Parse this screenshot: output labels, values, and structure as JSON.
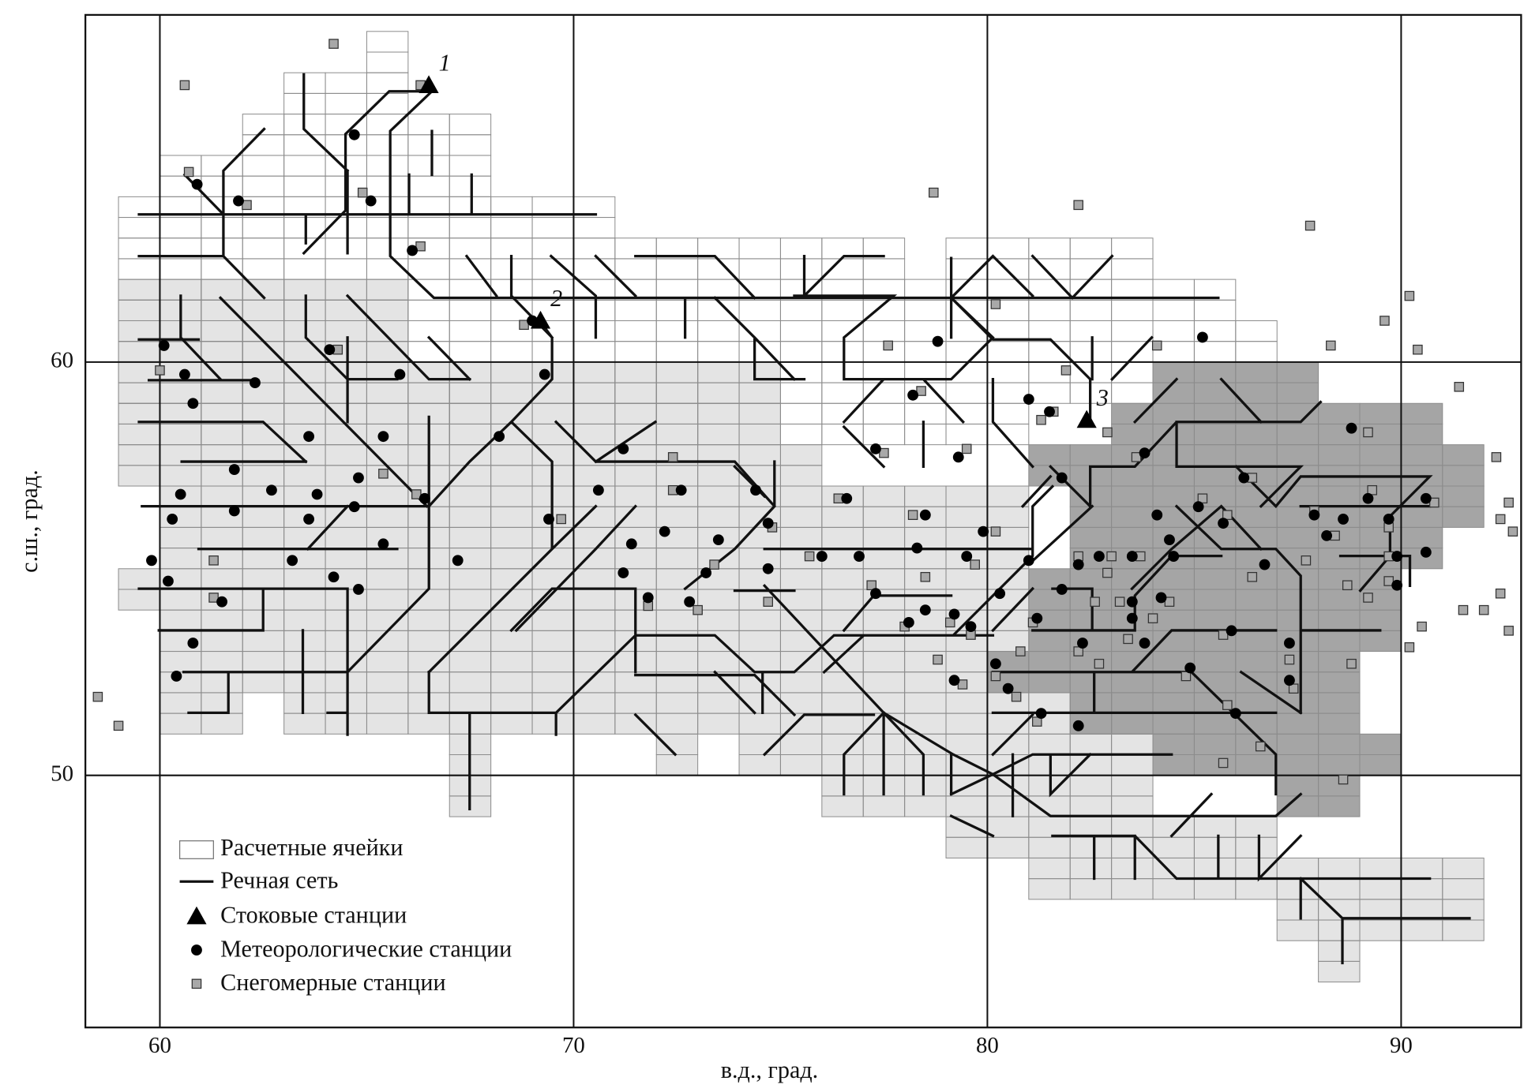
{
  "chart_data": {
    "type": "map",
    "xlabel": "в.д., град.",
    "ylabel": "с.ш., град.",
    "xlim": [
      58.2,
      92.9
    ],
    "ylim": [
      43.9,
      68.4
    ],
    "xticks": [
      60,
      70,
      80,
      90
    ],
    "yticks": [
      50,
      60
    ],
    "grid": true,
    "cell_size": [
      1,
      0.5
    ],
    "shades": {
      "white": "#ffffff",
      "light": "#e4e4e4",
      "dark": "#a5a5a5"
    },
    "legend": {
      "cells": "Расчетные ячейки",
      "rivers": "Речная сеть"
    },
    "cells": [
      {
        "lon": [
          65,
          66
        ],
        "lat": [
          67,
          68
        ],
        "shade": "white"
      },
      {
        "lon": [
          63,
          66
        ],
        "lat": [
          66,
          67
        ],
        "shade": "white"
      },
      {
        "lon": [
          62,
          68
        ],
        "lat": [
          65,
          66
        ],
        "shade": "white"
      },
      {
        "lon": [
          60,
          68
        ],
        "lat": [
          64,
          65
        ],
        "shade": "white"
      },
      {
        "lon": [
          59,
          71
        ],
        "lat": [
          63,
          64
        ],
        "shade": "white"
      },
      {
        "lon": [
          59,
          78
        ],
        "lat": [
          62,
          63
        ],
        "shade": "white"
      },
      {
        "lon": [
          79,
          84
        ],
        "lat": [
          62,
          63
        ],
        "shade": "white"
      },
      {
        "lon": [
          59,
          86
        ],
        "lat": [
          61,
          62
        ],
        "shade": "white"
      },
      {
        "lon": [
          59,
          87
        ],
        "lat": [
          60,
          61
        ],
        "shade": "white"
      },
      {
        "lon": [
          59,
          84
        ],
        "lat": [
          59,
          60
        ],
        "shade": "white"
      },
      {
        "lon": [
          59,
          81
        ],
        "lat": [
          58,
          59
        ],
        "shade": "white"
      },
      {
        "lon": [
          59,
          66
        ],
        "lat": [
          61,
          62
        ],
        "shade": "light"
      },
      {
        "lon": [
          59,
          66
        ],
        "lat": [
          60,
          61
        ],
        "shade": "light"
      },
      {
        "lon": [
          59,
          75
        ],
        "lat": [
          59,
          60
        ],
        "shade": "light"
      },
      {
        "lon": [
          59,
          75
        ],
        "lat": [
          58,
          59
        ],
        "shade": "light"
      },
      {
        "lon": [
          59,
          76
        ],
        "lat": [
          57,
          58
        ],
        "shade": "light"
      },
      {
        "lon": [
          60,
          81
        ],
        "lat": [
          56,
          57
        ],
        "shade": "light"
      },
      {
        "lon": [
          60,
          81
        ],
        "lat": [
          55,
          56
        ],
        "shade": "light"
      },
      {
        "lon": [
          59,
          81
        ],
        "lat": [
          54,
          55
        ],
        "shade": "light"
      },
      {
        "lon": [
          60,
          81
        ],
        "lat": [
          53,
          54
        ],
        "shade": "light"
      },
      {
        "lon": [
          60,
          81
        ],
        "lat": [
          52,
          53
        ],
        "shade": "light"
      },
      {
        "lon": [
          60,
          62
        ],
        "lat": [
          51,
          52
        ],
        "shade": "light"
      },
      {
        "lon": [
          63,
          85
        ],
        "lat": [
          51,
          52
        ],
        "shade": "light"
      },
      {
        "lon": [
          67,
          68
        ],
        "lat": [
          49,
          51
        ],
        "shade": "light"
      },
      {
        "lon": [
          72,
          73
        ],
        "lat": [
          50,
          51
        ],
        "shade": "light"
      },
      {
        "lon": [
          74,
          84
        ],
        "lat": [
          50,
          51
        ],
        "shade": "light"
      },
      {
        "lon": [
          76,
          84
        ],
        "lat": [
          49,
          50
        ],
        "shade": "light"
      },
      {
        "lon": [
          79,
          87
        ],
        "lat": [
          48,
          49
        ],
        "shade": "light"
      },
      {
        "lon": [
          81,
          92
        ],
        "lat": [
          47,
          48
        ],
        "shade": "light"
      },
      {
        "lon": [
          87,
          92
        ],
        "lat": [
          46,
          47
        ],
        "shade": "light"
      },
      {
        "lon": [
          88,
          89
        ],
        "lat": [
          45,
          46
        ],
        "shade": "light"
      },
      {
        "lon": [
          84,
          88
        ],
        "lat": [
          59,
          60
        ],
        "shade": "dark"
      },
      {
        "lon": [
          83,
          91
        ],
        "lat": [
          58,
          59
        ],
        "shade": "dark"
      },
      {
        "lon": [
          81,
          92
        ],
        "lat": [
          57,
          58
        ],
        "shade": "dark"
      },
      {
        "lon": [
          82,
          92
        ],
        "lat": [
          56,
          57
        ],
        "shade": "dark"
      },
      {
        "lon": [
          82,
          91
        ],
        "lat": [
          55,
          56
        ],
        "shade": "dark"
      },
      {
        "lon": [
          81,
          90
        ],
        "lat": [
          54,
          55
        ],
        "shade": "dark"
      },
      {
        "lon": [
          81,
          90
        ],
        "lat": [
          53,
          54
        ],
        "shade": "dark"
      },
      {
        "lon": [
          80,
          89
        ],
        "lat": [
          52,
          53
        ],
        "shade": "dark"
      },
      {
        "lon": [
          82,
          89
        ],
        "lat": [
          51,
          52
        ],
        "shade": "dark"
      },
      {
        "lon": [
          84,
          90
        ],
        "lat": [
          50,
          51
        ],
        "shade": "dark"
      },
      {
        "lon": [
          87,
          89
        ],
        "lat": [
          49,
          50
        ],
        "shade": "dark"
      }
    ],
    "stations": [
      {
        "name": "Стоковые станции",
        "marker": "triangle",
        "color": "#000000",
        "labels": [
          "1",
          "2",
          "3"
        ],
        "lon": [
          66.5,
          69.2,
          82.4
        ],
        "lat": [
          66.7,
          61.0,
          58.6
        ]
      },
      {
        "name": "Метеорологические станции",
        "marker": "circle",
        "color": "#000000",
        "lon": [
          64.7,
          60.9,
          61.9,
          65.1,
          66.1,
          60.1,
          60.6,
          60.8,
          62.3,
          64.1,
          65.8,
          63.6,
          65.4,
          61.8,
          60.5,
          62.7,
          63.8,
          64.8,
          60.3,
          61.8,
          63.6,
          64.7,
          66.4,
          59.8,
          60.2,
          61.5,
          63.2,
          64.2,
          64.8,
          65.4,
          60.8,
          60.4,
          68.2,
          69.3,
          69.0,
          71.2,
          70.6,
          69.4,
          67.2,
          71.4,
          71.2,
          71.8,
          72.2,
          72.6,
          72.8,
          73.2,
          73.5,
          74.4,
          74.7,
          74.7,
          76.0,
          76.6,
          76.9,
          77.3,
          77.3,
          78.5,
          78.3,
          78.5,
          78.1,
          79.2,
          79.6,
          78.8,
          78.2,
          79.3,
          79.9,
          79.5,
          80.3,
          79.2,
          80.2,
          80.5,
          81.0,
          81.5,
          81.0,
          81.2,
          81.3,
          82.2,
          81.8,
          81.8,
          82.2,
          82.3,
          82.7,
          83.5,
          83.5,
          83.5,
          83.8,
          84.1,
          84.2,
          84.4,
          84.5,
          83.8,
          84.9,
          85.1,
          85.2,
          85.7,
          85.9,
          86.0,
          86.2,
          86.7,
          87.3,
          87.3,
          87.9,
          88.2,
          88.6,
          88.8,
          89.2,
          89.7,
          89.9,
          89.9,
          90.6,
          90.6
        ],
        "lat": [
          65.5,
          64.3,
          63.9,
          63.9,
          62.7,
          60.4,
          59.7,
          59.0,
          59.5,
          60.3,
          59.7,
          58.2,
          58.2,
          57.4,
          56.8,
          56.9,
          56.8,
          57.2,
          56.2,
          56.4,
          56.2,
          56.5,
          56.7,
          55.2,
          54.7,
          54.2,
          55.2,
          54.8,
          54.5,
          55.6,
          53.2,
          52.4,
          58.2,
          59.7,
          61.0,
          57.9,
          56.9,
          56.2,
          55.2,
          55.6,
          54.9,
          54.3,
          55.9,
          56.9,
          54.2,
          54.9,
          55.7,
          56.9,
          56.1,
          55.0,
          55.3,
          56.7,
          55.3,
          54.4,
          57.9,
          56.3,
          55.5,
          54.0,
          53.7,
          53.9,
          53.6,
          60.5,
          59.2,
          57.7,
          55.9,
          55.3,
          54.4,
          52.3,
          52.7,
          52.1,
          59.1,
          58.8,
          55.2,
          53.8,
          51.5,
          51.2,
          57.2,
          54.5,
          55.1,
          53.2,
          55.3,
          55.3,
          54.2,
          53.8,
          57.8,
          56.3,
          54.3,
          55.7,
          55.3,
          53.2,
          52.6,
          56.5,
          60.6,
          56.1,
          53.5,
          51.5,
          57.2,
          55.1,
          53.2,
          52.3,
          56.3,
          55.8,
          56.2,
          58.4,
          56.7,
          56.2,
          55.3,
          54.6,
          56.7,
          55.4
        ]
      },
      {
        "name": "Снегомерные станции",
        "marker": "square",
        "color": "#a8a8a8",
        "lon": [
          64.2,
          60.6,
          66.3,
          60.7,
          62.1,
          64.9,
          66.3,
          78.7,
          82.2,
          87.8,
          90.2,
          89.6,
          90.4,
          88.3,
          91.4,
          92.3,
          92.6,
          92.4,
          92.7,
          92.4,
          92.0,
          91.5,
          92.6,
          90.5,
          90.2,
          58.5,
          59.0,
          60.0,
          64.3,
          68.8,
          77.6,
          80.2,
          81.9,
          84.1,
          78.4,
          81.3,
          82.9,
          83.6,
          86.4,
          89.3,
          89.2,
          89.7,
          90.8,
          72.4,
          72.4,
          69.7,
          66.2,
          65.4,
          61.3,
          61.3,
          71.8,
          73.0,
          73.4,
          74.7,
          74.8,
          75.7,
          76.4,
          77.2,
          77.5,
          79.5,
          78.2,
          78.5,
          78.0,
          79.1,
          79.6,
          78.8,
          79.4,
          80.2,
          79.7,
          80.2,
          80.7,
          80.8,
          81.1,
          81.2,
          82.2,
          82.9,
          82.6,
          83.0,
          83.2,
          83.7,
          84.0,
          84.4,
          83.4,
          82.2,
          82.7,
          85.2,
          85.8,
          86.4,
          87.3,
          87.4,
          87.9,
          88.4,
          87.7,
          88.7,
          89.2,
          89.7,
          89.7,
          88.8,
          85.8,
          85.7,
          86.6,
          88.6,
          85.7,
          84.8,
          81.6
        ],
        "lat": [
          67.7,
          66.7,
          66.7,
          64.6,
          63.8,
          64.1,
          62.8,
          64.1,
          63.8,
          63.3,
          61.6,
          61.0,
          60.3,
          60.4,
          59.4,
          57.7,
          56.6,
          56.2,
          55.9,
          54.4,
          54.0,
          54.0,
          53.5,
          53.6,
          53.1,
          51.9,
          51.2,
          59.8,
          60.3,
          60.9,
          60.4,
          61.4,
          59.8,
          60.4,
          59.3,
          58.6,
          58.3,
          57.7,
          57.2,
          56.9,
          58.3,
          56.0,
          56.6,
          57.7,
          56.9,
          56.2,
          56.8,
          57.3,
          55.2,
          54.3,
          54.1,
          54.0,
          55.1,
          54.2,
          56.0,
          55.3,
          56.7,
          54.6,
          57.8,
          57.9,
          56.3,
          54.8,
          53.6,
          53.7,
          53.4,
          52.8,
          52.2,
          55.9,
          55.1,
          52.4,
          51.9,
          53.0,
          53.7,
          51.3,
          55.3,
          54.9,
          54.2,
          55.3,
          54.2,
          55.3,
          53.8,
          54.2,
          53.3,
          53.0,
          52.7,
          56.7,
          56.3,
          54.8,
          52.8,
          52.1,
          56.4,
          55.8,
          55.2,
          54.6,
          54.3,
          55.3,
          54.7,
          52.7,
          51.7,
          50.3,
          50.7,
          49.9,
          53.4,
          52.4,
          58.8
        ]
      }
    ]
  }
}
